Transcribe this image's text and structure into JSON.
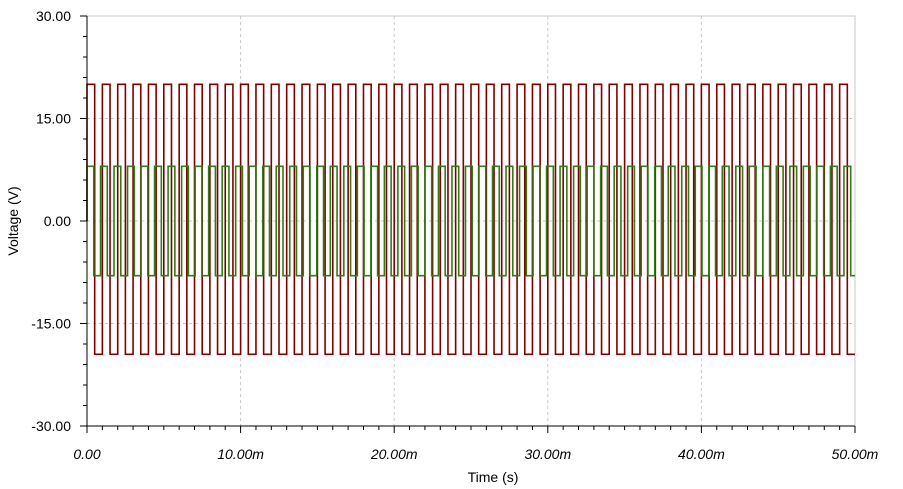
{
  "chart_data": {
    "type": "line",
    "title": "",
    "xlabel": "Time (s)",
    "ylabel": "Voltage (V)",
    "xlim": [
      0,
      0.05
    ],
    "ylim": [
      -30,
      30
    ],
    "grid": true,
    "legend": "none",
    "x_tick_labels": [
      "0.00",
      "10.00m",
      "20.00m",
      "30.00m",
      "40.00m",
      "50.00m"
    ],
    "y_tick_labels": [
      "30.00",
      "15.00",
      "0.00",
      "-15.00",
      "-30.00"
    ],
    "series": [
      {
        "color": "#800000",
        "waveform": "square",
        "high": 20,
        "low": -19.5,
        "period": 0.001,
        "t_start": 0,
        "t_end": 0.05
      },
      {
        "color": "#2e7d16",
        "waveform": "square",
        "high": 8,
        "low": -8,
        "period": 0.00088,
        "t_start": 0,
        "t_end": 0.05
      }
    ]
  }
}
